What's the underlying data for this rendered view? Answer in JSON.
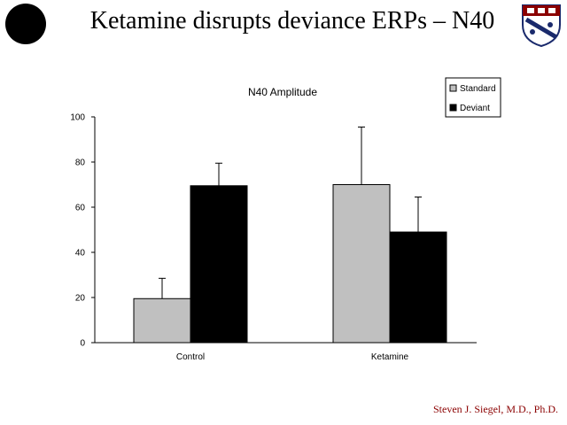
{
  "slide": {
    "title": "Ketamine disrupts deviance ERPs – N40",
    "footer": "Steven J. Siegel, M.D., Ph.D."
  },
  "colors": {
    "standard": "#c0c0c0",
    "deviant": "#000000",
    "footer_text": "#8b0000"
  },
  "icons": {
    "left_logo": "black-circle-logo",
    "right_logo": "university-crest-icon"
  },
  "chart_data": {
    "type": "bar",
    "title": "N40 Amplitude",
    "xlabel": "",
    "ylabel": "",
    "ylim": [
      0,
      100
    ],
    "yticks": [
      0,
      20,
      40,
      60,
      80,
      100
    ],
    "grid": false,
    "legend_position": "top-right",
    "categories": [
      "Control",
      "Ketamine"
    ],
    "series": [
      {
        "name": "Standard",
        "values": [
          19.5,
          70
        ],
        "error": [
          9,
          25.5
        ]
      },
      {
        "name": "Deviant",
        "values": [
          69.5,
          49
        ],
        "error": [
          10,
          15.5
        ]
      }
    ]
  }
}
